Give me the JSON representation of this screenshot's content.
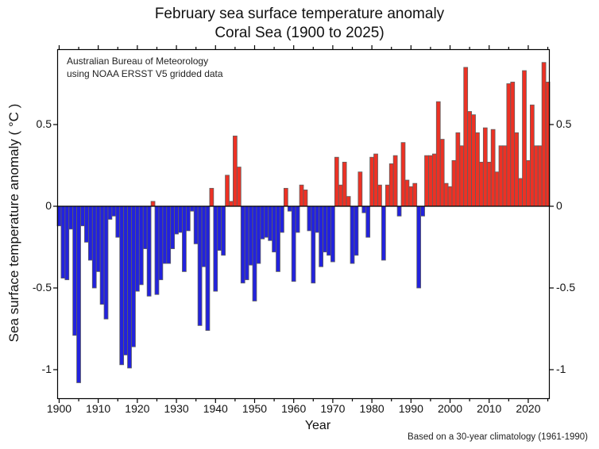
{
  "title": {
    "line1": "February sea surface temperature anomaly",
    "line2": "Coral Sea (1900 to 2025)"
  },
  "annotation": {
    "line1": "Australian Bureau of Meteorology",
    "line2": "using NOAA ERSST V5 gridded data"
  },
  "axes": {
    "y_label": "Sea surface temperature anomaly ( °C )",
    "x_label": "Year",
    "y_ticks": [
      {
        "label": "0.5",
        "value": 0.5
      },
      {
        "label": "0",
        "value": 0
      },
      {
        "label": "-0.5",
        "value": -0.5
      },
      {
        "label": "-1",
        "value": -1
      }
    ],
    "x_ticks": [
      {
        "label": "1900",
        "value": 1900
      },
      {
        "label": "1910",
        "value": 1910
      },
      {
        "label": "1920",
        "value": 1920
      },
      {
        "label": "1930",
        "value": 1930
      },
      {
        "label": "1940",
        "value": 1940
      },
      {
        "label": "1950",
        "value": 1950
      },
      {
        "label": "1960",
        "value": 1960
      },
      {
        "label": "1970",
        "value": 1970
      },
      {
        "label": "1980",
        "value": 1980
      },
      {
        "label": "1990",
        "value": 1990
      },
      {
        "label": "2000",
        "value": 2000
      },
      {
        "label": "2010",
        "value": 2010
      },
      {
        "label": "2020",
        "value": 2020
      }
    ]
  },
  "footnote": "Based on a 30-year climatology (1961-1990)",
  "colors": {
    "positive": "#ed3124",
    "negative": "#2222dd",
    "bar_outline": "#606060",
    "axis": "#000000",
    "background": "#ffffff"
  },
  "chart_data": {
    "type": "bar",
    "title": "February sea surface temperature anomaly — Coral Sea (1900 to 2025)",
    "xlabel": "Year",
    "ylabel": "Sea surface temperature anomaly (°C)",
    "ylim": [
      -1.18,
      0.96
    ],
    "grid": false,
    "legend": "none",
    "categories": [
      1900,
      1901,
      1902,
      1903,
      1904,
      1905,
      1906,
      1907,
      1908,
      1909,
      1910,
      1911,
      1912,
      1913,
      1914,
      1915,
      1916,
      1917,
      1918,
      1919,
      1920,
      1921,
      1922,
      1923,
      1924,
      1925,
      1926,
      1927,
      1928,
      1929,
      1930,
      1931,
      1932,
      1933,
      1934,
      1935,
      1936,
      1937,
      1938,
      1939,
      1940,
      1941,
      1942,
      1943,
      1944,
      1945,
      1946,
      1947,
      1948,
      1949,
      1950,
      1951,
      1952,
      1953,
      1954,
      1955,
      1956,
      1957,
      1958,
      1959,
      1960,
      1961,
      1962,
      1963,
      1964,
      1965,
      1966,
      1967,
      1968,
      1969,
      1970,
      1971,
      1972,
      1973,
      1974,
      1975,
      1976,
      1977,
      1978,
      1979,
      1980,
      1981,
      1982,
      1983,
      1984,
      1985,
      1986,
      1987,
      1988,
      1989,
      1990,
      1991,
      1992,
      1993,
      1994,
      1995,
      1996,
      1997,
      1998,
      1999,
      2000,
      2001,
      2002,
      2003,
      2004,
      2005,
      2006,
      2007,
      2008,
      2009,
      2010,
      2011,
      2012,
      2013,
      2014,
      2015,
      2016,
      2017,
      2018,
      2019,
      2020,
      2021,
      2022,
      2023,
      2024,
      2025
    ],
    "values": [
      -0.12,
      -0.44,
      -0.45,
      -0.14,
      -0.79,
      -1.08,
      -0.12,
      -0.22,
      -0.33,
      -0.5,
      -0.4,
      -0.6,
      -0.69,
      -0.08,
      -0.06,
      -0.19,
      -0.97,
      -0.91,
      -0.99,
      -0.86,
      -0.52,
      -0.48,
      -0.26,
      -0.55,
      0.03,
      -0.54,
      -0.45,
      -0.35,
      -0.35,
      -0.26,
      -0.17,
      -0.16,
      -0.4,
      -0.15,
      -0.03,
      -0.23,
      -0.73,
      -0.37,
      -0.76,
      0.11,
      -0.52,
      -0.27,
      -0.3,
      0.19,
      0.03,
      0.43,
      0.24,
      -0.47,
      -0.45,
      -0.36,
      -0.58,
      -0.35,
      -0.2,
      -0.19,
      -0.21,
      -0.28,
      -0.4,
      -0.16,
      0.11,
      -0.03,
      -0.46,
      -0.16,
      0.13,
      0.1,
      -0.15,
      -0.47,
      -0.16,
      -0.37,
      -0.28,
      -0.3,
      -0.34,
      0.3,
      0.13,
      0.27,
      0.06,
      -0.35,
      -0.3,
      0.21,
      -0.04,
      -0.19,
      0.3,
      0.32,
      0.13,
      -0.33,
      0.13,
      0.26,
      0.31,
      -0.06,
      0.39,
      0.16,
      0.12,
      0.14,
      -0.5,
      -0.06,
      0.31,
      0.31,
      0.32,
      0.64,
      0.41,
      0.14,
      0.12,
      0.28,
      0.45,
      0.37,
      0.85,
      0.58,
      0.56,
      0.45,
      0.27,
      0.48,
      0.27,
      0.47,
      0.21,
      0.37,
      0.37,
      0.75,
      0.76,
      0.45,
      0.17,
      0.83,
      0.28,
      0.62,
      0.37,
      0.37,
      0.88,
      0.76
    ]
  }
}
